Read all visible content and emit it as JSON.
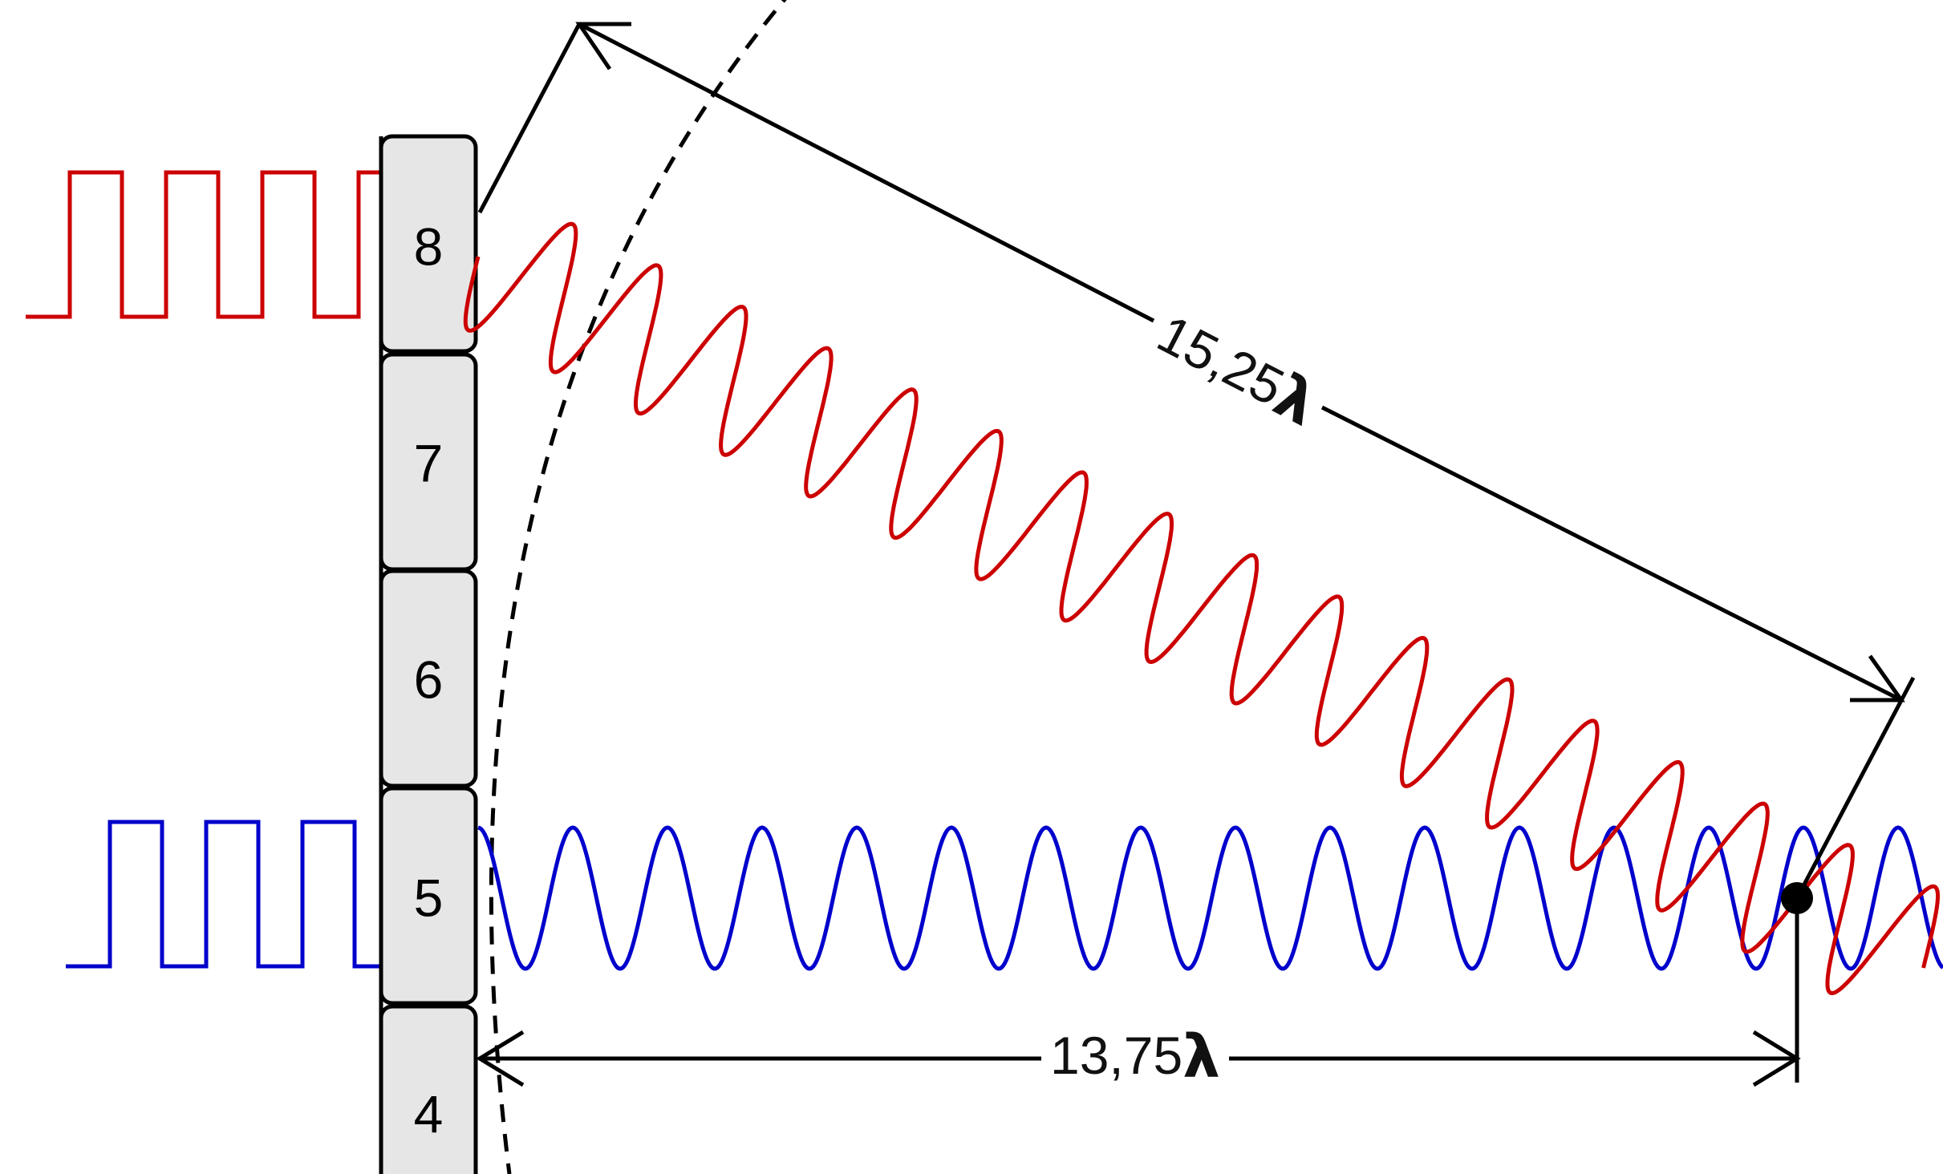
{
  "elements": [
    {
      "label": "8"
    },
    {
      "label": "7"
    },
    {
      "label": "6"
    },
    {
      "label": "5"
    },
    {
      "label": "4"
    }
  ],
  "dimensions": {
    "diagonal": {
      "value": "15,25",
      "symbol": "λ"
    },
    "horizontal": {
      "value": "13,75",
      "symbol": "λ"
    }
  },
  "colors": {
    "red_signal": "#cc0000",
    "blue_signal": "#0000cc",
    "element_fill": "#e6e6e6",
    "lines": "#000000"
  }
}
